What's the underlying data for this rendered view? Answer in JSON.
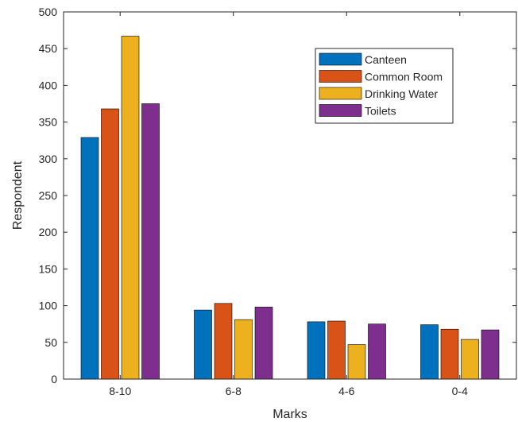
{
  "chart_data": {
    "type": "bar",
    "categories": [
      "8-10",
      "6-8",
      "4-6",
      "0-4"
    ],
    "series": [
      {
        "name": "Canteen",
        "color": "#0072BD",
        "values": [
          329,
          94,
          78,
          74
        ]
      },
      {
        "name": "Common Room",
        "color": "#D95319",
        "values": [
          368,
          103,
          79,
          68
        ]
      },
      {
        "name": "Drinking Water",
        "color": "#EDB120",
        "values": [
          467,
          81,
          47,
          54
        ]
      },
      {
        "name": "Toilets",
        "color": "#7E2F8E",
        "values": [
          375,
          98,
          75,
          67
        ]
      }
    ],
    "xlabel": "Marks",
    "ylabel": "Respondent",
    "ylim": [
      0,
      500
    ],
    "yticks": [
      0,
      50,
      100,
      150,
      200,
      250,
      300,
      350,
      400,
      450,
      500
    ],
    "grid": false,
    "legend_position": "top-right"
  }
}
